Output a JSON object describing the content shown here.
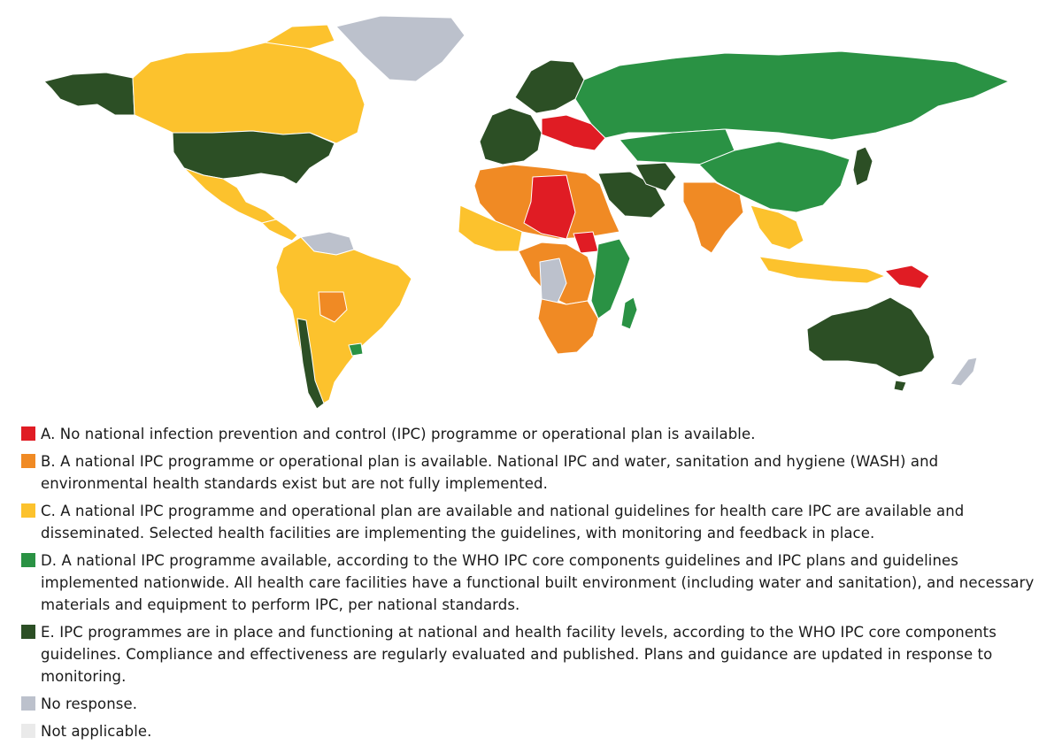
{
  "colors": {
    "A": "#e01c24",
    "B": "#f08a24",
    "C": "#fcc22d",
    "D": "#2a9244",
    "E": "#2c4f25",
    "no_response": "#bcc1cc",
    "not_applicable": "#eaeaea"
  },
  "map": {
    "regions": [
      {
        "id": "alaska",
        "status": "E"
      },
      {
        "id": "canada",
        "status": "C"
      },
      {
        "id": "greenland",
        "status": "no_response"
      },
      {
        "id": "usa",
        "status": "E"
      },
      {
        "id": "mexico",
        "status": "C"
      },
      {
        "id": "central-america",
        "status": "C"
      },
      {
        "id": "venezuela",
        "status": "no_response"
      },
      {
        "id": "south-america",
        "status": "C"
      },
      {
        "id": "bolivia",
        "status": "B"
      },
      {
        "id": "chile",
        "status": "E"
      },
      {
        "id": "uruguay",
        "status": "D"
      },
      {
        "id": "scandinavia",
        "status": "E"
      },
      {
        "id": "western-europe",
        "status": "E"
      },
      {
        "id": "eastern-europe",
        "status": "A"
      },
      {
        "id": "russia",
        "status": "D"
      },
      {
        "id": "central-asia",
        "status": "D"
      },
      {
        "id": "north-africa",
        "status": "B"
      },
      {
        "id": "libya-chad",
        "status": "A"
      },
      {
        "id": "west-africa",
        "status": "C"
      },
      {
        "id": "central-africa",
        "status": "B"
      },
      {
        "id": "drc",
        "status": "no_response"
      },
      {
        "id": "east-africa",
        "status": "D"
      },
      {
        "id": "southern-africa",
        "status": "B"
      },
      {
        "id": "madagascar",
        "status": "D"
      },
      {
        "id": "south-sudan",
        "status": "A"
      },
      {
        "id": "saudi-arabia",
        "status": "E"
      },
      {
        "id": "iran",
        "status": "E"
      },
      {
        "id": "india",
        "status": "B"
      },
      {
        "id": "china",
        "status": "D"
      },
      {
        "id": "japan",
        "status": "E"
      },
      {
        "id": "southeast-asia",
        "status": "C"
      },
      {
        "id": "indonesia",
        "status": "C"
      },
      {
        "id": "papua-new-guinea",
        "status": "A"
      },
      {
        "id": "australia",
        "status": "E"
      },
      {
        "id": "new-zealand",
        "status": "no_response"
      }
    ]
  },
  "legend": [
    {
      "key": "A",
      "text": "A. No national infection prevention and control (IPC) programme or operational plan is available."
    },
    {
      "key": "B",
      "text": "B. A national IPC programme or operational plan is available. National IPC and water, sanitation and hygiene (WASH) and environmental health standards exist but are not fully implemented."
    },
    {
      "key": "C",
      "text": "C. A national IPC programme and operational plan are available and national guidelines for health care IPC are available and disseminated. Selected health facilities are implementing the guidelines, with monitoring and feedback in place."
    },
    {
      "key": "D",
      "text": "D. A national IPC programme available, according to the WHO IPC core components guidelines and IPC plans and guidelines implemented nationwide. All health care facilities have a functional built environment (including water and sanitation), and necessary materials and equipment to perform IPC, per national standards."
    },
    {
      "key": "E",
      "text": "E. IPC programmes are in place and functioning at national and health facility levels, according to the WHO IPC core components guidelines. Compliance and effectiveness are regularly evaluated and published. Plans and guidance are updated in response to monitoring."
    },
    {
      "key": "no_response",
      "text": "No response."
    },
    {
      "key": "not_applicable",
      "text": "Not applicable."
    }
  ]
}
